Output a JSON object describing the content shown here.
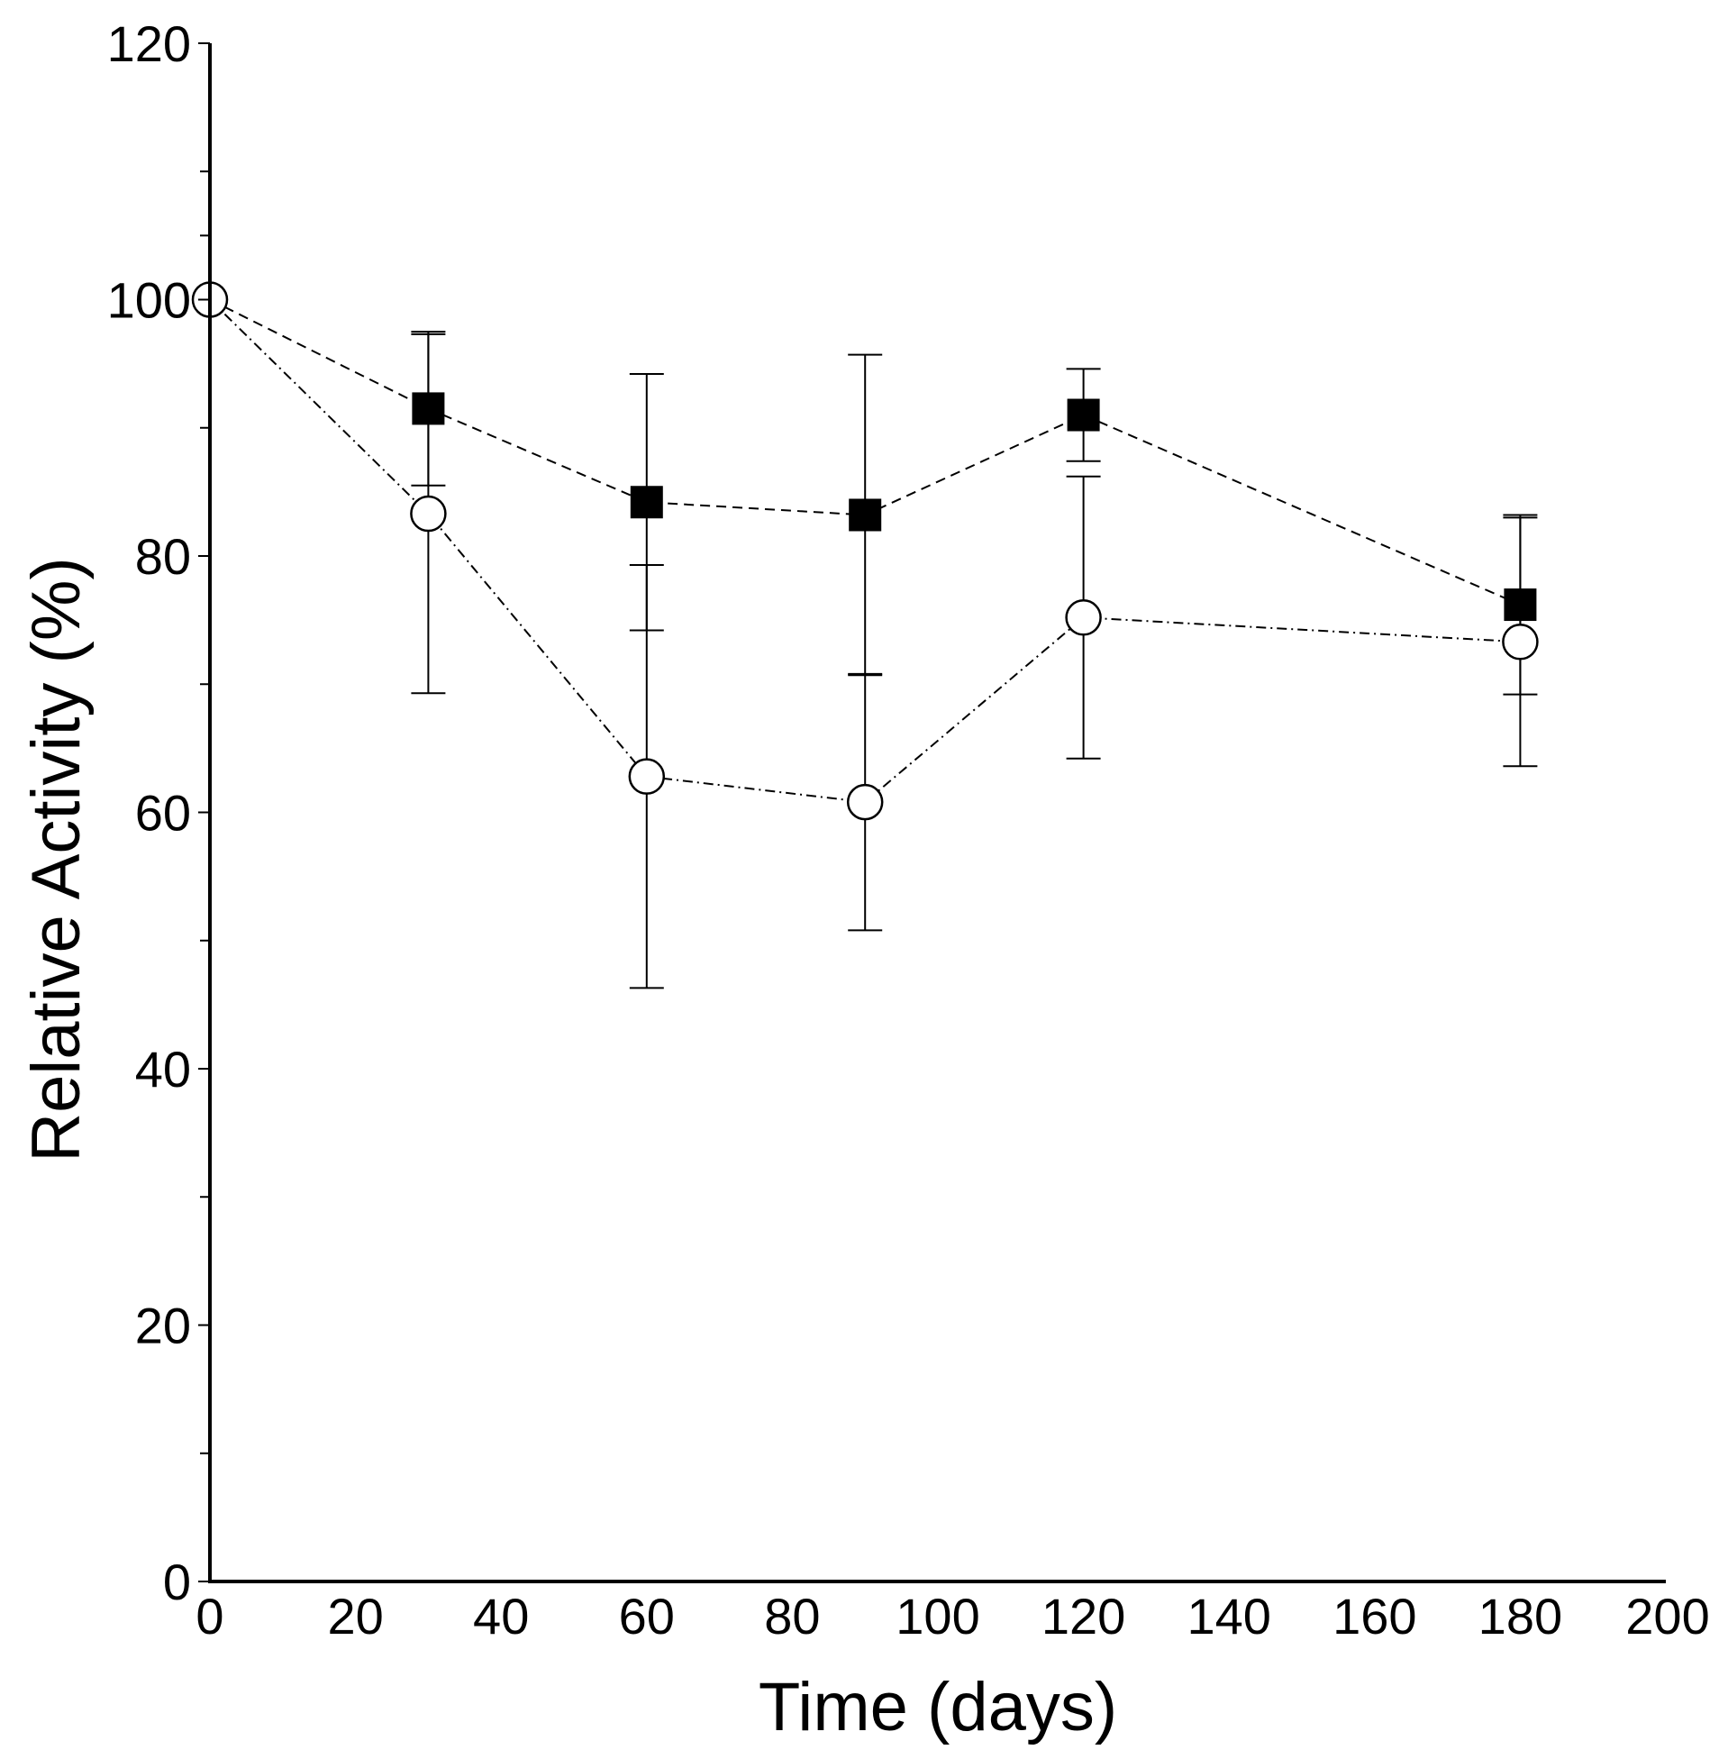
{
  "chart_data": {
    "type": "line",
    "title": "",
    "xlabel": "Time (days)",
    "ylabel": "Relative Activity (%)",
    "xlim": [
      0,
      200
    ],
    "ylim": [
      0,
      120
    ],
    "xticks": [
      "0",
      "20",
      "40",
      "60",
      "80",
      "100",
      "120",
      "140",
      "160",
      "180",
      "200"
    ],
    "yticks": [
      "0",
      "20",
      "40",
      "60",
      "80",
      "100",
      "120"
    ],
    "yminor": [
      10,
      30,
      50,
      70,
      90,
      105,
      110
    ],
    "grid": false,
    "legend": "none",
    "series": [
      {
        "name": "filled squares",
        "marker": "square",
        "fill": "#000000",
        "dash": "dashed",
        "x": [
          0,
          30,
          60,
          90,
          120,
          180
        ],
        "y": [
          100,
          91.5,
          84.2,
          83.2,
          91,
          76.2
        ],
        "err": [
          0,
          6,
          10,
          12.5,
          3.6,
          7
        ]
      },
      {
        "name": "open circles",
        "marker": "circle",
        "fill": "#ffffff",
        "dash": "dash-dot",
        "x": [
          0,
          30,
          60,
          90,
          120,
          180
        ],
        "y": [
          100,
          83.3,
          62.8,
          60.8,
          75.2,
          73.3
        ],
        "err": [
          0,
          14,
          16.5,
          10,
          11,
          9.7
        ]
      }
    ]
  }
}
